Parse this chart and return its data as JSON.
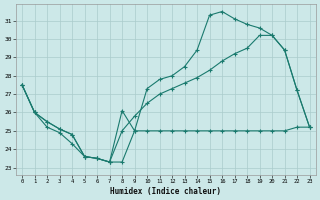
{
  "bg_color": "#cce8e8",
  "grid_color": "#aacccc",
  "line_color": "#1a7a6e",
  "xlabel": "Humidex (Indice chaleur)",
  "xlim": [
    -0.5,
    23.5
  ],
  "ylim": [
    22.6,
    31.9
  ],
  "xticks": [
    0,
    1,
    2,
    3,
    4,
    5,
    6,
    7,
    8,
    9,
    10,
    11,
    12,
    13,
    14,
    15,
    16,
    17,
    18,
    19,
    20,
    21,
    22,
    23
  ],
  "yticks": [
    23,
    24,
    25,
    26,
    27,
    28,
    29,
    30,
    31
  ],
  "line1_x": [
    0,
    1,
    2,
    3,
    4,
    5,
    6,
    7,
    8,
    9,
    10,
    11,
    12,
    13,
    14,
    15,
    16,
    17,
    18,
    19,
    20,
    21,
    22,
    23
  ],
  "line1_y": [
    27.5,
    26.0,
    25.2,
    24.9,
    24.3,
    23.6,
    23.5,
    23.3,
    23.3,
    25.0,
    25.0,
    25.0,
    25.0,
    25.0,
    25.0,
    25.0,
    25.0,
    25.0,
    25.0,
    25.0,
    25.0,
    25.0,
    25.2,
    25.2
  ],
  "line2_x": [
    0,
    1,
    2,
    3,
    4,
    5,
    6,
    7,
    8,
    9,
    10,
    11,
    12,
    13,
    14,
    15,
    16,
    17,
    18,
    19,
    20,
    21,
    22,
    23
  ],
  "line2_y": [
    27.5,
    26.0,
    25.5,
    25.1,
    24.8,
    23.6,
    23.5,
    23.3,
    25.0,
    25.8,
    26.5,
    27.0,
    27.3,
    27.6,
    27.9,
    28.3,
    28.8,
    29.2,
    29.5,
    30.2,
    30.2,
    29.4,
    27.2,
    25.2
  ],
  "line3_x": [
    0,
    1,
    2,
    3,
    4,
    5,
    6,
    7,
    8,
    9,
    10,
    11,
    12,
    13,
    14,
    15,
    16,
    17,
    18,
    19,
    20,
    21,
    22,
    23
  ],
  "line3_y": [
    27.5,
    26.0,
    25.5,
    25.1,
    24.8,
    23.6,
    23.5,
    23.3,
    26.1,
    25.0,
    27.3,
    27.8,
    28.0,
    28.5,
    29.4,
    31.3,
    31.5,
    31.1,
    30.8,
    30.6,
    30.2,
    29.4,
    27.2,
    25.2
  ]
}
